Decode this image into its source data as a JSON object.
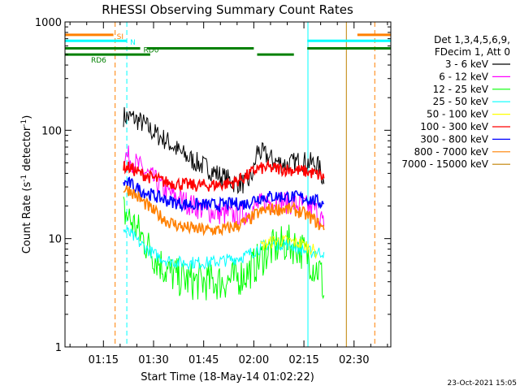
{
  "chart_data": {
    "type": "line",
    "title": "RHESSI Observing Summary Count Rates",
    "xlabel": "Start Time (18-May-14 01:02:22)",
    "ylabel_main": "Count Rate (s",
    "ylabel_sup1": "-1",
    "ylabel_mid": " detector",
    "ylabel_sup2": "-1",
    "ylabel_end": ")",
    "y_scale": "log",
    "ylim": [
      1,
      1000
    ],
    "xlim_minutes": [
      63.5,
      161.0
    ],
    "x_ticks": [
      {
        "label": "01:15",
        "minutes": 75
      },
      {
        "label": "01:30",
        "minutes": 90
      },
      {
        "label": "01:45",
        "minutes": 105
      },
      {
        "label": "02:00",
        "minutes": 120
      },
      {
        "label": "02:15",
        "minutes": 135
      },
      {
        "label": "02:30",
        "minutes": 150
      }
    ],
    "y_ticks": [
      {
        "label": "1",
        "value": 1
      },
      {
        "label": "10",
        "value": 10
      },
      {
        "label": "100",
        "value": 100
      },
      {
        "label": "1000",
        "value": 1000
      }
    ],
    "legend_header": [
      "Det 1,3,4,5,6,9,",
      "FDecim 1, Att 0"
    ],
    "legend_placement": "right",
    "series": [
      {
        "name": "3 - 6 keV",
        "color": "#000000",
        "points": [
          [
            81,
            135
          ],
          [
            84,
            130
          ],
          [
            87,
            115
          ],
          [
            90,
            95
          ],
          [
            94,
            80
          ],
          [
            98,
            62
          ],
          [
            102,
            52
          ],
          [
            106,
            45
          ],
          [
            110,
            38
          ],
          [
            114,
            33
          ],
          [
            118,
            32
          ],
          [
            120,
            42
          ],
          [
            121,
            65
          ],
          [
            123,
            60
          ],
          [
            126,
            52
          ],
          [
            130,
            48
          ],
          [
            134,
            52
          ],
          [
            137,
            50
          ],
          [
            139,
            48
          ],
          [
            140,
            42
          ],
          [
            141,
            32
          ]
        ]
      },
      {
        "name": "6 - 12 keV",
        "color": "#ff00ff",
        "points": [
          [
            81,
            60
          ],
          [
            83,
            55
          ],
          [
            86,
            45
          ],
          [
            90,
            35
          ],
          [
            94,
            27
          ],
          [
            98,
            23
          ],
          [
            102,
            20
          ],
          [
            106,
            18
          ],
          [
            110,
            17
          ],
          [
            114,
            16.5
          ],
          [
            118,
            17
          ],
          [
            121,
            20
          ],
          [
            124,
            22
          ],
          [
            128,
            22
          ],
          [
            132,
            21
          ],
          [
            135,
            20
          ],
          [
            138,
            19
          ],
          [
            140,
            16
          ],
          [
            141,
            13
          ]
        ]
      },
      {
        "name": "12 - 25 keV",
        "color": "#00ff00",
        "points": [
          [
            81,
            18
          ],
          [
            83,
            15
          ],
          [
            86,
            11
          ],
          [
            90,
            7
          ],
          [
            94,
            5
          ],
          [
            98,
            4.3
          ],
          [
            102,
            4
          ],
          [
            106,
            4
          ],
          [
            110,
            4
          ],
          [
            114,
            4.2
          ],
          [
            118,
            4.8
          ],
          [
            121,
            6
          ],
          [
            124,
            7.5
          ],
          [
            127,
            8.5
          ],
          [
            130,
            9
          ],
          [
            133,
            8.5
          ],
          [
            136,
            7
          ],
          [
            138,
            5.5
          ],
          [
            140,
            5
          ],
          [
            141,
            3
          ]
        ]
      },
      {
        "name": "25 - 50 keV",
        "color": "#00ffff",
        "points": [
          [
            81,
            12
          ],
          [
            83,
            11
          ],
          [
            86,
            9
          ],
          [
            90,
            7.2
          ],
          [
            94,
            6.3
          ],
          [
            98,
            6
          ],
          [
            102,
            6
          ],
          [
            106,
            6
          ],
          [
            110,
            6.2
          ],
          [
            114,
            6.5
          ],
          [
            118,
            7
          ],
          [
            121,
            8
          ],
          [
            124,
            8.8
          ],
          [
            128,
            9
          ],
          [
            131,
            8.8
          ],
          [
            134,
            8
          ],
          [
            137,
            7.5
          ],
          [
            139,
            7.5
          ],
          [
            141,
            7.5
          ]
        ]
      },
      {
        "name": "50 - 100 keV",
        "color": "#ffff00",
        "points": [
          [
            122,
            8.5
          ],
          [
            126,
            9.5
          ],
          [
            130,
            9.5
          ],
          [
            134,
            9
          ],
          [
            137,
            8.2
          ],
          [
            139,
            7.2
          ]
        ]
      },
      {
        "name": "100 - 300 keV",
        "color": "#ff0000",
        "points": [
          [
            81,
            46
          ],
          [
            83,
            45
          ],
          [
            86,
            40
          ],
          [
            90,
            36
          ],
          [
            94,
            33
          ],
          [
            98,
            32
          ],
          [
            102,
            31
          ],
          [
            106,
            31
          ],
          [
            110,
            31.5
          ],
          [
            114,
            33
          ],
          [
            118,
            38
          ],
          [
            121,
            44
          ],
          [
            124,
            45
          ],
          [
            128,
            44
          ],
          [
            132,
            43
          ],
          [
            135,
            42
          ],
          [
            138,
            40
          ],
          [
            140,
            38
          ],
          [
            141,
            36
          ]
        ]
      },
      {
        "name": "300 - 800 keV",
        "color": "#0000ff",
        "points": [
          [
            81,
            33
          ],
          [
            83,
            32
          ],
          [
            86,
            28
          ],
          [
            90,
            25
          ],
          [
            94,
            22.5
          ],
          [
            98,
            21
          ],
          [
            102,
            20.5
          ],
          [
            106,
            20.5
          ],
          [
            110,
            20.5
          ],
          [
            114,
            21
          ],
          [
            118,
            21
          ],
          [
            120,
            23
          ],
          [
            122,
            24
          ],
          [
            126,
            24.5
          ],
          [
            130,
            24.5
          ],
          [
            134,
            24
          ],
          [
            137,
            23
          ],
          [
            139,
            22
          ],
          [
            141,
            21
          ]
        ]
      },
      {
        "name": "800 - 7000 keV",
        "color": "#ff8000",
        "points": [
          [
            81,
            29
          ],
          [
            83,
            28
          ],
          [
            86,
            23
          ],
          [
            90,
            18
          ],
          [
            94,
            14.5
          ],
          [
            98,
            13
          ],
          [
            102,
            12.3
          ],
          [
            106,
            12
          ],
          [
            110,
            12
          ],
          [
            114,
            12.8
          ],
          [
            118,
            14.5
          ],
          [
            121,
            17
          ],
          [
            124,
            18.5
          ],
          [
            128,
            18.8
          ],
          [
            132,
            18.5
          ],
          [
            135,
            17
          ],
          [
            138,
            15
          ],
          [
            140,
            13
          ],
          [
            141,
            12
          ]
        ]
      },
      {
        "name": "7000 - 15000 keV",
        "color": "#c08000",
        "points": []
      }
    ],
    "state_bars": [
      {
        "label": "SI",
        "color": "#ff8000",
        "level": 760,
        "segments": [
          [
            63.5,
            78
          ],
          [
            151,
            161
          ]
        ]
      },
      {
        "label": "N",
        "color": "#00ffff",
        "level": 670,
        "segments": [
          [
            63.5,
            82
          ],
          [
            136,
            161
          ]
        ]
      },
      {
        "label": "RD0",
        "color": "#008000",
        "level": 570,
        "segments": [
          [
            63.5,
            86
          ],
          [
            88,
            120
          ],
          [
            136,
            161
          ]
        ]
      },
      {
        "label": "RD6",
        "color": "#008000",
        "level": 500,
        "segments": [
          [
            63.5,
            89
          ],
          [
            121,
            132
          ]
        ]
      }
    ],
    "vertical_markers": [
      {
        "minutes": 63.5,
        "color": "#00ffff",
        "style": "solid"
      },
      {
        "minutes": 78.5,
        "color": "#ff8000",
        "style": "dashed"
      },
      {
        "minutes": 82.0,
        "color": "#00ffff",
        "style": "dashed"
      },
      {
        "minutes": 136.2,
        "color": "#00ffff",
        "style": "solid"
      },
      {
        "minutes": 147.7,
        "color": "#c08000",
        "style": "solid"
      },
      {
        "minutes": 156.2,
        "color": "#ff8000",
        "style": "dashed"
      }
    ]
  },
  "footer_timestamp": "23-Oct-2021 15:05"
}
